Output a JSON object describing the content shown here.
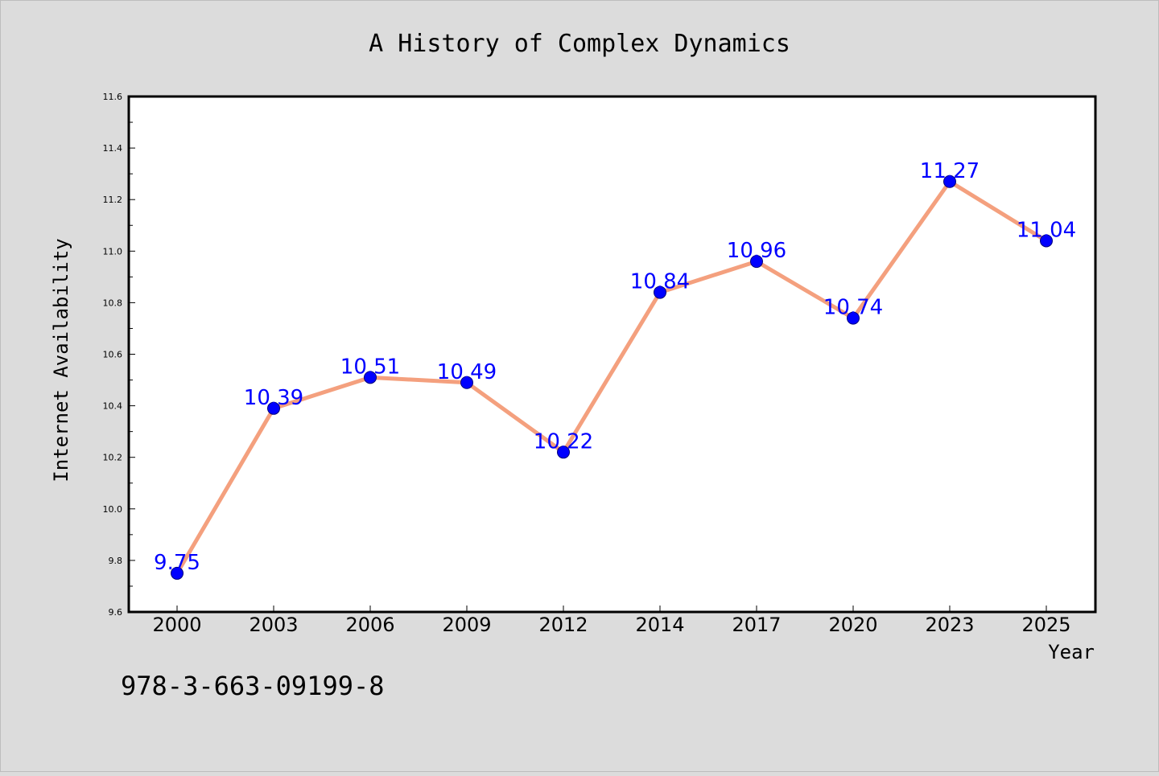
{
  "chart_data": {
    "type": "line",
    "title": "A History of Complex Dynamics",
    "xlabel": "Year",
    "ylabel": "Internet Availability",
    "categories": [
      "2000",
      "2003",
      "2006",
      "2009",
      "2012",
      "2014",
      "2017",
      "2020",
      "2023",
      "2025"
    ],
    "values": [
      9.75,
      10.39,
      10.51,
      10.49,
      10.22,
      10.84,
      10.96,
      10.74,
      11.27,
      11.04
    ],
    "data_labels": [
      "9.75",
      "10.39",
      "10.51",
      "10.49",
      "10.22",
      "10.84",
      "10.96",
      "10.74",
      "11.27",
      "11.04"
    ],
    "ylim": [
      9.6,
      11.6
    ],
    "yticks": [
      "9.6",
      "9.8",
      "10.0",
      "10.2",
      "10.4",
      "10.6",
      "10.8",
      "11.0",
      "11.2",
      "11.4",
      "11.6"
    ],
    "grid": false,
    "legend": "none",
    "colors": {
      "line": "#f4a07e",
      "marker": "#0000ff",
      "label": "#0000ff",
      "background": "#dcdcdc",
      "plot_background": "#ffffff"
    }
  },
  "footer_text": "978-3-663-09199-8"
}
